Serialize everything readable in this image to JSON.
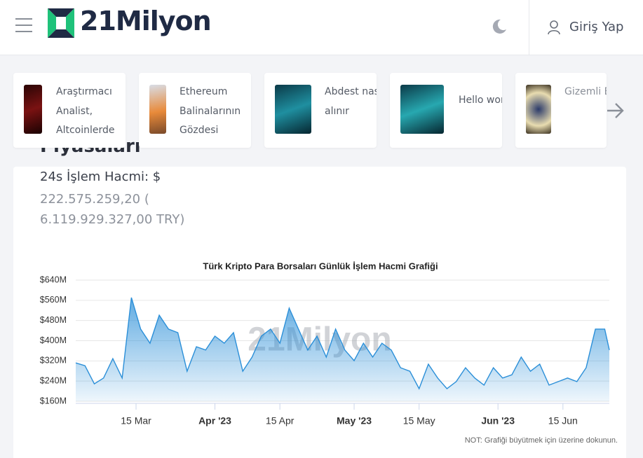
{
  "header": {
    "logo_number": "21",
    "logo_text": "Milyon",
    "login": "Giriş Yap"
  },
  "stories": [
    {
      "text": "Araştırmacı Analist, Altcoinlerde"
    },
    {
      "text": "Ethereum Balinalarının Gözdesi"
    },
    {
      "text": "Abdest nasıl alınır"
    },
    {
      "text": "Hello world!"
    },
    {
      "text": "Gizemli Bitcoin Cüzdan"
    }
  ],
  "heading": "Piyasaları",
  "volume_label": "24s İşlem Hacmi: $",
  "volume_value": "222.575.259,20 ( 6.119.929.327,00 TRY)",
  "chart_data": {
    "type": "area",
    "title": "Türk Kripto Para Borsaları Günlük İşlem Hacmi Grafiği",
    "watermark": "21Milyon",
    "color": "#2b8fd8",
    "grid": true,
    "x": [
      "2023-03-02",
      "2023-03-04",
      "2023-03-06",
      "2023-03-08",
      "2023-03-10",
      "2023-03-12",
      "2023-03-14",
      "2023-03-16",
      "2023-03-18",
      "2023-03-20",
      "2023-03-22",
      "2023-03-24",
      "2023-03-26",
      "2023-03-28",
      "2023-03-30",
      "2023-04-01",
      "2023-04-03",
      "2023-04-05",
      "2023-04-07",
      "2023-04-09",
      "2023-04-11",
      "2023-04-13",
      "2023-04-15",
      "2023-04-17",
      "2023-04-19",
      "2023-04-21",
      "2023-04-23",
      "2023-04-25",
      "2023-04-27",
      "2023-04-29",
      "2023-05-01",
      "2023-05-03",
      "2023-05-05",
      "2023-05-07",
      "2023-05-09",
      "2023-05-11",
      "2023-05-13",
      "2023-05-15",
      "2023-05-17",
      "2023-05-19",
      "2023-05-21",
      "2023-05-23",
      "2023-05-25",
      "2023-05-27",
      "2023-05-29",
      "2023-05-31",
      "2023-06-02",
      "2023-06-04",
      "2023-06-06",
      "2023-06-08",
      "2023-06-10",
      "2023-06-12",
      "2023-06-14",
      "2023-06-16",
      "2023-06-18",
      "2023-06-20",
      "2023-06-22",
      "2023-06-24",
      "2023-06-25"
    ],
    "values": [
      312,
      301,
      229,
      252,
      329,
      252,
      571,
      446,
      390,
      501,
      446,
      432,
      279,
      376,
      363,
      418,
      390,
      432,
      279,
      335,
      418,
      446,
      390,
      529,
      446,
      363,
      418,
      335,
      446,
      363,
      321,
      390,
      335,
      390,
      363,
      293,
      279,
      210,
      307,
      252,
      210,
      238,
      293,
      252,
      224,
      293,
      252,
      265,
      335,
      279,
      307,
      224,
      238,
      252,
      238,
      293,
      446,
      446,
      363
    ],
    "xlim": [
      "2023-03-02",
      "2023-06-25"
    ],
    "xticks": [
      {
        "value": "2023-03-15",
        "label": "15 Mar"
      },
      {
        "value": "2023-04-01",
        "label": "Apr '23"
      },
      {
        "value": "2023-04-15",
        "label": "15 Apr"
      },
      {
        "value": "2023-05-01",
        "label": "May '23"
      },
      {
        "value": "2023-05-15",
        "label": "15 May"
      },
      {
        "value": "2023-06-01",
        "label": "Jun '23"
      },
      {
        "value": "2023-06-15",
        "label": "15 Jun"
      }
    ],
    "ylim": [
      160,
      640
    ],
    "yticks": [
      {
        "value": 160,
        "label": "$160M"
      },
      {
        "value": 240,
        "label": "$240M"
      },
      {
        "value": 320,
        "label": "$320M"
      },
      {
        "value": 400,
        "label": "$400M"
      },
      {
        "value": 480,
        "label": "$480M"
      },
      {
        "value": 560,
        "label": "$560M"
      },
      {
        "value": 640,
        "label": "$640M"
      }
    ]
  },
  "note": "NOT: Grafiği büyütmek için üzerine dokunun."
}
